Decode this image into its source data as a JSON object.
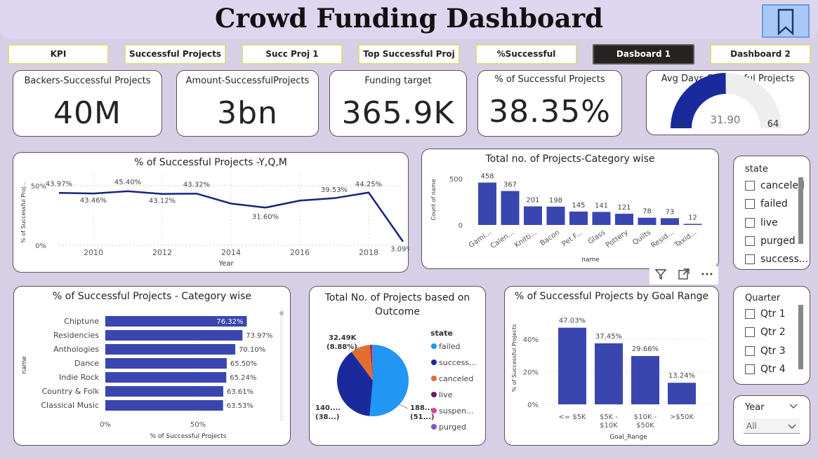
{
  "title": "Crowd Funding Dashboard",
  "nav": [
    "KPI",
    "Successful Projects",
    "Succ Proj 1",
    "Top Successful Proj",
    "%Successful",
    "Dasboard 1",
    "Dashboard 2"
  ],
  "kpis": [
    {
      "label": "Backers-Successful Projects",
      "value": "40M"
    },
    {
      "label": "Amount-SuccessfulProjects",
      "value": "3bn"
    },
    {
      "label": "Funding target",
      "value": "365.9K"
    },
    {
      "label": "% of Successful Projects",
      "value": "38.35%"
    }
  ],
  "gauge": {
    "label": "Avg Days-Successful Projects",
    "value": "31.90",
    "min": "0",
    "max": "64",
    "fraction": 0.498
  },
  "line_chart_title": "% of Successful Projects -Y,Q,M",
  "bar_chart_title": "Total no. of Projects-Category wise",
  "hbar_chart_title": "% of Successful Projects - Category wise",
  "pie_chart_title": "Total No. of Projects based on Outcome",
  "goal_chart_title": "% of Successful Projects by Goal Range",
  "state_slicer": {
    "title": "state",
    "items": [
      "canceled",
      "failed",
      "live",
      "purged",
      "success..."
    ]
  },
  "quarter_slicer": {
    "title": "Quarter",
    "items": [
      "Qtr 1",
      "Qtr 2",
      "Qtr 3",
      "Qtr 4"
    ]
  },
  "year_slicer": {
    "title": "Year",
    "value": "All"
  },
  "toolbar_icons": [
    "filter-icon",
    "focus-mode-icon",
    "more-options-icon"
  ],
  "chart_data": [
    {
      "type": "line",
      "title": "% of Successful Projects -Y,Q,M",
      "xlabel": "Year",
      "ylabel": "% of Successful Proj...",
      "x": [
        2009,
        2010,
        2011,
        2012,
        2013,
        2014,
        2015,
        2016,
        2017,
        2018,
        2019
      ],
      "values": [
        43.97,
        43.46,
        45.4,
        43.12,
        43.32,
        35.0,
        31.6,
        37.5,
        39.53,
        44.25,
        3.09
      ],
      "labels": [
        "43.97%",
        "43.46%",
        "45.40%",
        "43.12%",
        "43.32%",
        "",
        "31.60%",
        "",
        "39.53%",
        "44.25%",
        "3.09%"
      ],
      "xticks": [
        "2010",
        "2012",
        "2014",
        "2016",
        "2018"
      ],
      "yticks": [
        "0%",
        "50%"
      ],
      "ylim": [
        0,
        60
      ],
      "color": "#1a237e"
    },
    {
      "type": "bar",
      "title": "Total no. of Projects-Category wise",
      "xlabel": "name",
      "ylabel": "Count of name",
      "categories": [
        "Gami...",
        "Calen...",
        "Knitti...",
        "Bacon",
        "Pet F...",
        "Glass",
        "Pottery",
        "Quilts",
        "Resid...",
        "Taxid..."
      ],
      "values": [
        458,
        367,
        201,
        198,
        145,
        141,
        121,
        78,
        73,
        12
      ],
      "yticks": [
        "0",
        "500"
      ],
      "ylim": [
        0,
        560
      ],
      "color": "#3a46b0"
    },
    {
      "type": "bar",
      "orientation": "horizontal",
      "title": "% of Successful Projects - Category wise",
      "xlabel": "% of Successful Projects",
      "ylabel": "name",
      "categories": [
        "Chiptune",
        "Residencies",
        "Anthologies",
        "Dance",
        "Indie Rock",
        "Country & Folk",
        "Classical Music"
      ],
      "values": [
        76.32,
        73.97,
        70.1,
        65.5,
        65.24,
        63.61,
        63.53
      ],
      "labels": [
        "76.32%",
        "73.97%",
        "70.10%",
        "65.50%",
        "65.24%",
        "63.61%",
        "63.53%"
      ],
      "xticks": [
        "0%",
        "50%"
      ],
      "xlim": [
        0,
        100
      ],
      "color": "#3a46b0"
    },
    {
      "type": "pie",
      "title": "Total No. of Projects based on Outcome",
      "legend_title": "state",
      "legend_position": "right",
      "slices": [
        {
          "name": "failed",
          "value": 51.0,
          "color": "#2196f3"
        },
        {
          "name": "success...",
          "value": 38.0,
          "color": "#1a2a9c"
        },
        {
          "name": "canceled",
          "value": 8.88,
          "color": "#e36d2f"
        },
        {
          "name": "live",
          "value": 0.7,
          "color": "#6a1b6a"
        },
        {
          "name": "suspen...",
          "value": 0.4,
          "color": "#e040a0"
        },
        {
          "name": "purged",
          "value": 0.1,
          "color": "#7e57c2"
        }
      ],
      "data_labels": [
        {
          "text1": "32.49K",
          "text2": "(8.88%)"
        },
        {
          "text1": "140....",
          "text2": "(38...)"
        },
        {
          "text1": "188....",
          "text2": "(51...)"
        }
      ]
    },
    {
      "type": "bar",
      "title": "% of Successful Projects by Goal Range",
      "xlabel": "Goal_Range",
      "ylabel": "% of Successful Projects",
      "categories": [
        "<= $5K",
        "$5K - $10K",
        "$10K - $50K",
        ">$50K"
      ],
      "values": [
        47.03,
        37.45,
        29.66,
        13.24
      ],
      "labels": [
        "47.03%",
        "37.45%",
        "29.66%",
        "13.24%"
      ],
      "yticks": [
        "0%",
        "20%",
        "40%"
      ],
      "ylim": [
        0,
        52
      ],
      "color": "#3a46b0"
    }
  ]
}
